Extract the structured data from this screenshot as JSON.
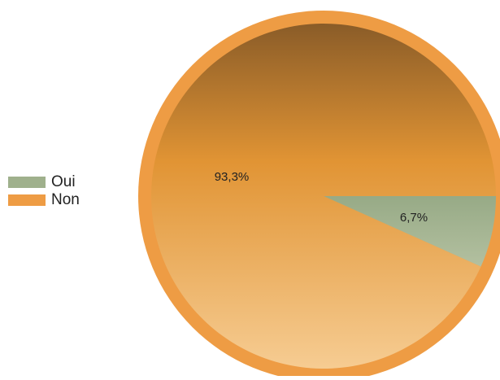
{
  "chart_data": {
    "type": "pie",
    "categories": [
      "Oui",
      "Non"
    ],
    "values": [
      6.7,
      93.3
    ],
    "value_labels": [
      "6,7%",
      "93,3%"
    ],
    "colors": [
      "#9fb08c",
      "#ee9c44"
    ],
    "start_direction": "right (3 o'clock), clockwise",
    "legend_position": "left"
  },
  "legend": {
    "items": [
      {
        "label": "Oui",
        "color": "#9fb08c"
      },
      {
        "label": "Non",
        "color": "#ee9c44"
      }
    ]
  }
}
